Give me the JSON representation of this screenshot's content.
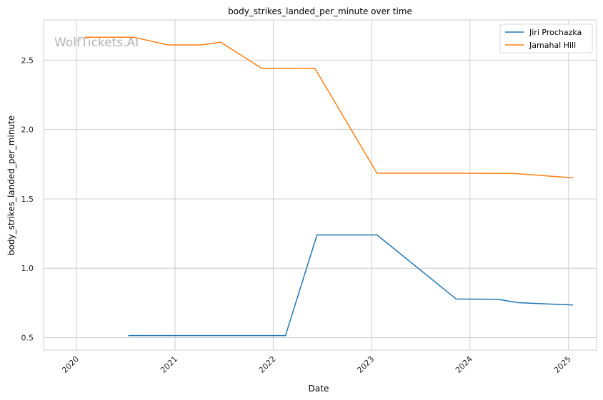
{
  "chart_data": {
    "type": "line",
    "title": "body_strikes_landed_per_minute over time",
    "xlabel": "Date",
    "ylabel": "body_strikes_landed_per_minute",
    "watermark": "WolfTickets.AI",
    "xlim": [
      "2019-09-01",
      "2025-04-15"
    ],
    "ylim": [
      0.41,
      2.79
    ],
    "xticks": [
      "2020-01-01",
      "2021-01-01",
      "2022-01-01",
      "2023-01-01",
      "2024-01-01",
      "2025-01-01"
    ],
    "xtick_labels": [
      "2020",
      "2021",
      "2022",
      "2023",
      "2024",
      "2025"
    ],
    "yticks": [
      0.5,
      1.0,
      1.5,
      2.0,
      2.5
    ],
    "ytick_labels": [
      "0.5",
      "1.0",
      "1.5",
      "2.0",
      "2.5"
    ],
    "grid": true,
    "legend_position": "top-right",
    "series": [
      {
        "name": "Jiri Prochazka",
        "color": "#1f77b4",
        "points": [
          [
            "2020-07-11",
            0.515
          ],
          [
            "2021-01-01",
            0.515
          ],
          [
            "2022-02-15",
            0.515
          ],
          [
            "2022-06-12",
            1.24
          ],
          [
            "2023-01-21",
            1.24
          ],
          [
            "2023-11-11",
            0.778
          ],
          [
            "2024-04-13",
            0.776
          ],
          [
            "2024-06-29",
            0.752
          ],
          [
            "2025-01-18",
            0.735
          ]
        ]
      },
      {
        "name": "Jamahal Hill",
        "color": "#ff7f0e",
        "points": [
          [
            "2020-02-01",
            2.665
          ],
          [
            "2020-08-01",
            2.665
          ],
          [
            "2020-12-05",
            2.61
          ],
          [
            "2021-04-10",
            2.61
          ],
          [
            "2021-06-19",
            2.63
          ],
          [
            "2021-11-20",
            2.44
          ],
          [
            "2022-06-04",
            2.442
          ],
          [
            "2023-01-21",
            1.685
          ],
          [
            "2023-12-01",
            1.685
          ],
          [
            "2024-06-15",
            1.683
          ],
          [
            "2025-01-18",
            1.652
          ]
        ]
      }
    ]
  }
}
